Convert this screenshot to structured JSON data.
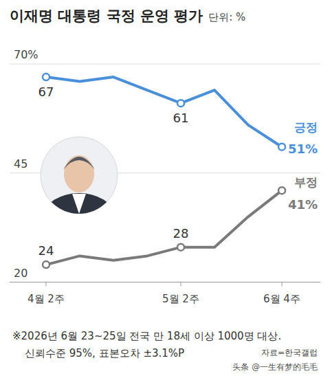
{
  "chart_data": {
    "type": "line",
    "title": "이재명 대통령 국정 운영 평가",
    "subtitle": "단위: %",
    "categories": [
      "4월 2주",
      null,
      null,
      null,
      "5월 2주",
      null,
      null,
      "6월 4주"
    ],
    "series": [
      {
        "name": "긍정",
        "color": "#4a8fda",
        "marker": "circle",
        "values": [
          67,
          66,
          67,
          64,
          61,
          64,
          56,
          51
        ],
        "value_labels": [
          "67",
          null,
          null,
          null,
          "61",
          null,
          null,
          "51%"
        ]
      },
      {
        "name": "부정",
        "color": "#7a7a7a",
        "marker": "circle",
        "values": [
          24,
          26,
          25,
          26,
          28,
          28,
          35,
          41
        ],
        "value_labels": [
          "24",
          null,
          null,
          null,
          "28",
          null,
          null,
          "41%"
        ]
      }
    ],
    "ylim": [
      20,
      70
    ],
    "yticks": [
      {
        "value": 70,
        "label": "70%"
      },
      45,
      20
    ],
    "grid": true,
    "data_labels": true,
    "legend": "right",
    "annotations": [
      "※2026년 6월 23~25일 전국 만 18세 이상 1000명 대상.",
      "신뢰수준 95%, 표본오차 ±3.1%P"
    ],
    "source": "자료=한국갤럽",
    "watermark": "头条 @一生有梦的毛毛"
  }
}
